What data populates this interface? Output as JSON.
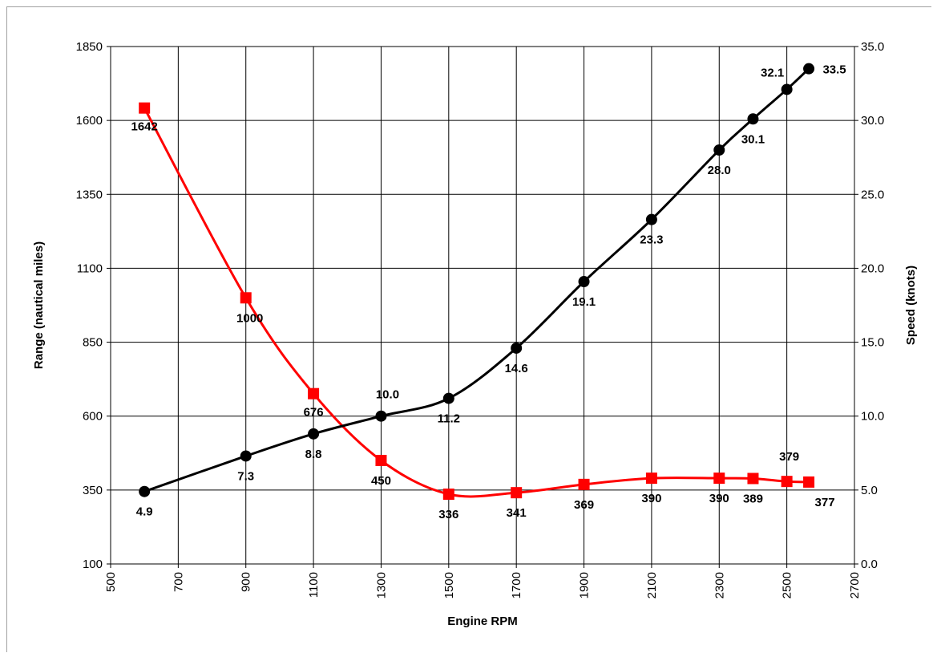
{
  "chart_data": {
    "type": "line",
    "xlabel": "Engine RPM",
    "ylabel_left": "Range (nautical miles)",
    "ylabel_right": "Speed (knots)",
    "xlim": [
      500,
      2700
    ],
    "x_ticks": [
      "500",
      "700",
      "900",
      "1100",
      "1300",
      "1500",
      "1700",
      "1900",
      "2100",
      "2300",
      "2500",
      "2700"
    ],
    "ylim_left": [
      100,
      1850
    ],
    "y_left_ticks": [
      "100",
      "350",
      "600",
      "850",
      "1100",
      "1350",
      "1600",
      "1850"
    ],
    "ylim_right": [
      0,
      35
    ],
    "y_right_ticks": [
      "0.0",
      "5.0",
      "10.0",
      "15.0",
      "20.0",
      "25.0",
      "30.0",
      "35.0"
    ],
    "grid": true,
    "series": [
      {
        "axis": "left",
        "color": "#ff0000",
        "marker": "square",
        "x": [
          600,
          900,
          1100,
          1300,
          1500,
          1700,
          1900,
          2100,
          2300,
          2400,
          2500,
          2565
        ],
        "values": [
          1642,
          1000,
          676,
          450,
          336,
          341,
          369,
          390,
          390,
          389,
          379,
          377
        ],
        "labels": [
          "1642",
          "1000",
          "676",
          "450",
          "336",
          "341",
          "369",
          "390",
          "390",
          "389",
          "379",
          "377"
        ]
      },
      {
        "axis": "right",
        "color": "#000000",
        "marker": "circle",
        "x": [
          600,
          900,
          1100,
          1300,
          1500,
          1700,
          1900,
          2100,
          2300,
          2400,
          2500,
          2565
        ],
        "values": [
          4.9,
          7.3,
          8.8,
          10.0,
          11.2,
          14.6,
          19.1,
          23.3,
          28.0,
          30.1,
          32.1,
          33.5
        ],
        "labels": [
          "4.9",
          "7.3",
          "8.8",
          "10.0",
          "11.2",
          "14.6",
          "19.1",
          "23.3",
          "28.0",
          "30.1",
          "32.1",
          "33.5"
        ]
      }
    ]
  }
}
